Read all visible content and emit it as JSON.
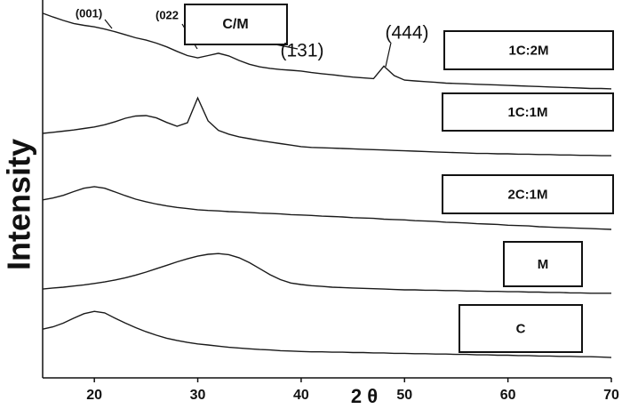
{
  "chart_data": {
    "type": "line",
    "x_label": "2 θ",
    "y_label": "Intensity",
    "xlim": [
      15,
      70
    ],
    "xticks": [
      20,
      30,
      40,
      50,
      60,
      70
    ],
    "ylim": [
      0,
      100
    ],
    "x": [
      15,
      16,
      17,
      18,
      19,
      20,
      21,
      22,
      23,
      24,
      25,
      26,
      27,
      28,
      29,
      30,
      31,
      32,
      33,
      34,
      35,
      36,
      37,
      38,
      39,
      40,
      41,
      42,
      43,
      44,
      45,
      46,
      47,
      48,
      49,
      50,
      51,
      52,
      53,
      54,
      55,
      56,
      57,
      58,
      59,
      60,
      61,
      62,
      63,
      64,
      65,
      66,
      67,
      68,
      69,
      70
    ],
    "series": [
      {
        "name": "1C:2M",
        "color": "#1a1a1a",
        "values": [
          96.5,
          95.5,
          94.6,
          93.8,
          93.3,
          92.9,
          92.3,
          91.6,
          90.8,
          90,
          89.4,
          88.6,
          87.6,
          86.4,
          85.3,
          84.7,
          85.3,
          85.9,
          85.2,
          84,
          83,
          82.3,
          81.9,
          81.6,
          81.4,
          81.2,
          80.8,
          80.5,
          80.2,
          79.9,
          79.6,
          79.4,
          79.2,
          82.5,
          80,
          78.8,
          78.6,
          78.4,
          78.2,
          78,
          77.9,
          77.8,
          77.7,
          77.6,
          77.5,
          77.4,
          77.3,
          77.2,
          77.1,
          77,
          76.9,
          76.8,
          76.7,
          76.6,
          76.6,
          76.5
        ]
      },
      {
        "name": "1C:1M",
        "color": "#1a1a1a",
        "values": [
          64.7,
          65,
          65.3,
          65.6,
          66,
          66.4,
          67,
          67.8,
          68.7,
          69.3,
          69.4,
          68.8,
          67.6,
          66.6,
          67.5,
          74.1,
          68,
          65.5,
          64.5,
          63.8,
          63.3,
          62.8,
          62.4,
          62,
          61.6,
          61.2,
          61,
          60.9,
          60.8,
          60.7,
          60.6,
          60.5,
          60.4,
          60.3,
          60.2,
          60.1,
          60,
          59.9,
          59.8,
          59.7,
          59.6,
          59.5,
          59.4,
          59.4,
          59.3,
          59.3,
          59.2,
          59.2,
          59.1,
          59.1,
          59,
          59,
          58.9,
          58.9,
          58.8,
          58.8
        ]
      },
      {
        "name": "2C:1M",
        "color": "#1a1a1a",
        "values": [
          47.1,
          47.6,
          48.3,
          49.3,
          50.2,
          50.6,
          50.2,
          49.2,
          48.2,
          47.3,
          46.6,
          46,
          45.5,
          45.1,
          44.8,
          44.5,
          44.3,
          44.2,
          44,
          43.9,
          43.8,
          43.6,
          43.5,
          43.4,
          43.2,
          43.1,
          43,
          42.8,
          42.7,
          42.6,
          42.4,
          42.3,
          42.2,
          42,
          41.9,
          41.8,
          41.6,
          41.5,
          41.4,
          41.2,
          41.1,
          41,
          40.8,
          40.7,
          40.6,
          40.4,
          40.3,
          40.2,
          40,
          39.9,
          39.8,
          39.7,
          39.6,
          39.5,
          39.4,
          39.3
        ]
      },
      {
        "name": "M",
        "color": "#1a1a1a",
        "values": [
          23.5,
          23.8,
          24,
          24.3,
          24.6,
          25,
          25.4,
          25.9,
          26.5,
          27.2,
          28,
          28.9,
          29.8,
          30.7,
          31.5,
          32.2,
          32.7,
          32.9,
          32.6,
          31.8,
          30.5,
          28.9,
          27.3,
          26,
          25.1,
          24.7,
          24.4,
          24.2,
          24,
          23.9,
          23.8,
          23.7,
          23.6,
          23.5,
          23.4,
          23.3,
          23.3,
          23.2,
          23.2,
          23.1,
          23.1,
          23,
          23,
          22.9,
          22.9,
          22.8,
          22.8,
          22.7,
          22.7,
          22.6,
          22.6,
          22.5,
          22.5,
          22.4,
          22.4,
          22.4
        ]
      },
      {
        "name": "C",
        "color": "#1a1a1a",
        "values": [
          12.9,
          13.5,
          14.5,
          15.8,
          17,
          17.6,
          17.2,
          15.8,
          14.5,
          13.3,
          12.2,
          11.3,
          10.5,
          9.9,
          9.4,
          9,
          8.7,
          8.4,
          8.1,
          7.9,
          7.7,
          7.5,
          7.4,
          7.2,
          7.1,
          7,
          6.9,
          6.9,
          6.8,
          6.8,
          6.7,
          6.7,
          6.6,
          6.6,
          6.5,
          6.5,
          6.4,
          6.4,
          6.3,
          6.3,
          6.2,
          6.2,
          6.1,
          6.1,
          6,
          6,
          5.9,
          5.9,
          5.8,
          5.8,
          5.7,
          5.7,
          5.6,
          5.6,
          5.5,
          5.4
        ]
      }
    ],
    "annotations": [
      "(001)",
      "(022",
      "C/M",
      "(131)",
      "(444)"
    ]
  }
}
